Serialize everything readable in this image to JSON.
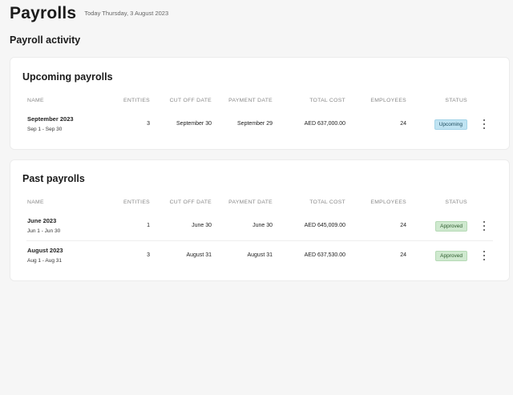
{
  "header": {
    "title": "Payrolls",
    "date": "Today Thursday, 3 August 2023"
  },
  "section_title": "Payroll activity",
  "columns": {
    "name": "NAME",
    "entities": "ENTITIES",
    "cut_off": "CUT OFF DATE",
    "payment": "PAYMENT DATE",
    "total_cost": "TOTAL COST",
    "employees": "EMPLOYEES",
    "status": "STATUS"
  },
  "upcoming": {
    "title": "Upcoming payrolls",
    "rows": [
      {
        "name": "September 2023",
        "range": "Sep 1 - Sep 30",
        "entities": "3",
        "cut_off": "September 30",
        "payment": "September 29",
        "total_cost": "AED 637,000.00",
        "employees": "24",
        "status": "Upcoming"
      }
    ]
  },
  "past": {
    "title": "Past payrolls",
    "rows": [
      {
        "name": "June 2023",
        "range": "Jun 1 - Jun 30",
        "entities": "1",
        "cut_off": "June 30",
        "payment": "June 30",
        "total_cost": "AED 645,009.00",
        "employees": "24",
        "status": "Approved"
      },
      {
        "name": "August 2023",
        "range": "Aug 1 - Aug 31",
        "entities": "3",
        "cut_off": "August 31",
        "payment": "August 31",
        "total_cost": "AED 637,530.00",
        "employees": "24",
        "status": "Approved"
      }
    ]
  },
  "icons": {
    "row_menu": "more-vertical-icon"
  },
  "colors": {
    "upcoming_badge": "#bfe3f2",
    "approved_badge": "#cfe9cf"
  }
}
